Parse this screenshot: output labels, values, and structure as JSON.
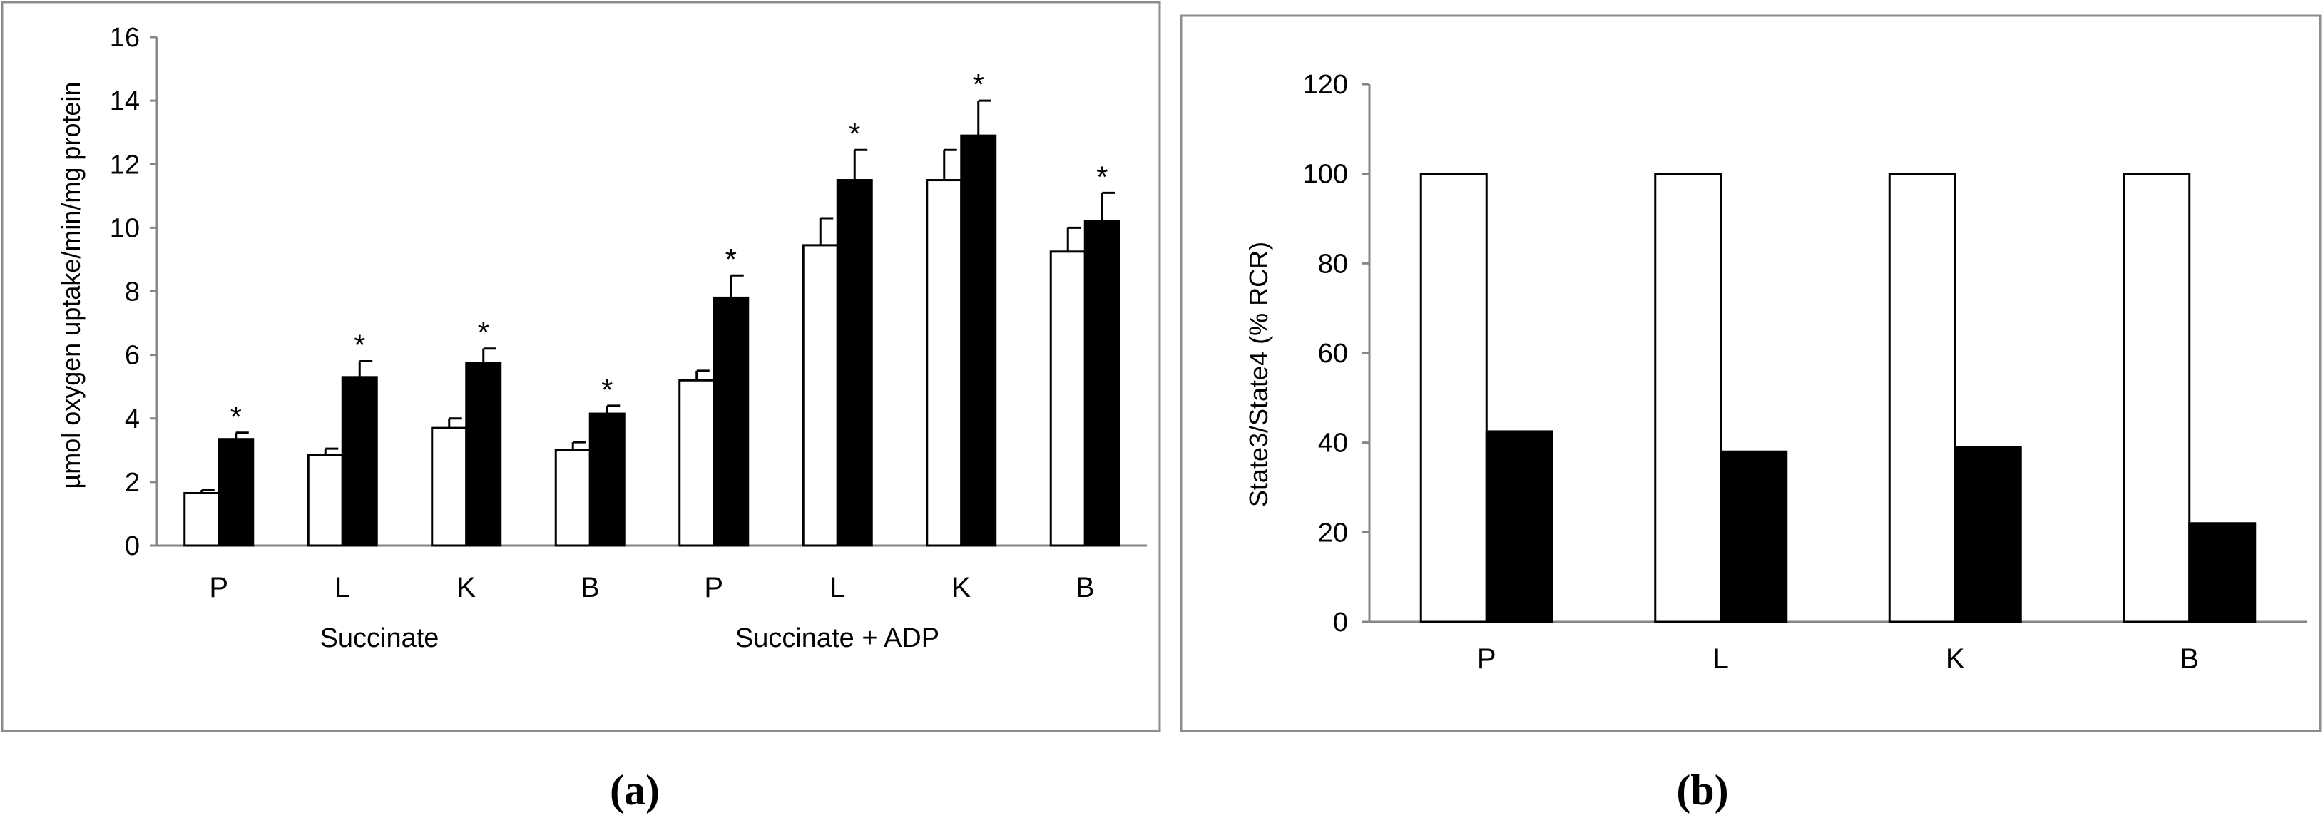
{
  "chart_data": [
    {
      "type": "bar",
      "caption": "(a)",
      "ylabel": "µmol oxygen uptake/min/mg protein",
      "ylim": [
        0,
        16
      ],
      "yticks": [
        0,
        2,
        4,
        6,
        8,
        10,
        12,
        14,
        16
      ],
      "categories": [
        "P",
        "L",
        "K",
        "B",
        "P",
        "L",
        "K",
        "B"
      ],
      "groups": [
        {
          "label": "Succinate",
          "span": [
            0,
            3
          ]
        },
        {
          "label": "Succinate + ADP",
          "span": [
            4,
            7
          ]
        }
      ],
      "series": [
        {
          "name": "open",
          "fill": "#ffffff",
          "values": [
            1.65,
            2.85,
            3.7,
            3.0,
            5.2,
            9.45,
            11.5,
            9.25
          ],
          "errors": [
            0.1,
            0.2,
            0.3,
            0.25,
            0.3,
            0.85,
            0.95,
            0.75
          ]
        },
        {
          "name": "solid",
          "fill": "#000000",
          "values": [
            3.35,
            5.3,
            5.75,
            4.15,
            7.8,
            11.5,
            12.9,
            10.2
          ],
          "errors": [
            0.2,
            0.5,
            0.45,
            0.25,
            0.7,
            0.95,
            1.1,
            0.9
          ]
        }
      ],
      "significance_marker": "*",
      "significant_series": "solid"
    },
    {
      "type": "bar",
      "caption": "(b)",
      "ylabel": "State3/State4 (% RCR)",
      "ylim": [
        0,
        120
      ],
      "yticks": [
        0,
        20,
        40,
        60,
        80,
        100,
        120
      ],
      "categories": [
        "P",
        "L",
        "K",
        "B"
      ],
      "series": [
        {
          "name": "open",
          "fill": "#ffffff",
          "values": [
            100,
            100,
            100,
            100
          ]
        },
        {
          "name": "solid",
          "fill": "#000000",
          "values": [
            42.5,
            38,
            39,
            22
          ]
        }
      ]
    }
  ]
}
